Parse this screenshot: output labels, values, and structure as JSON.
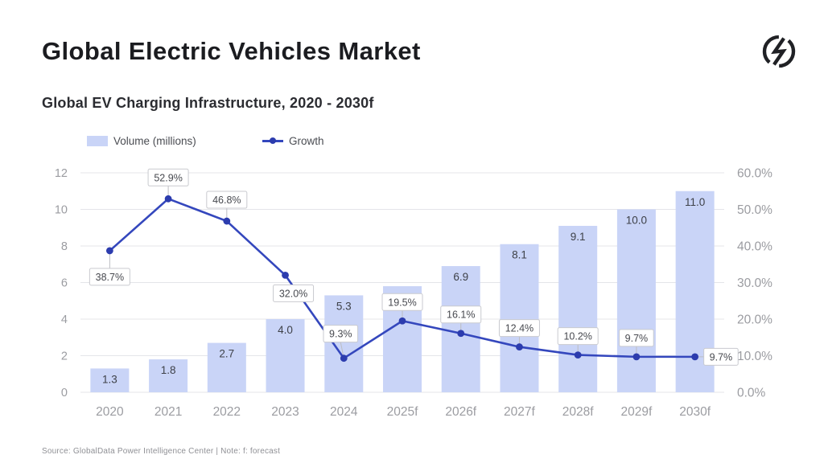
{
  "header": {
    "title": "Global Electric Vehicles Market",
    "subtitle": "Global EV Charging Infrastructure, 2020 - 2030f"
  },
  "legend": {
    "volume_label": "Volume (millions)",
    "growth_label": "Growth",
    "volume_color": "#c9d4f7",
    "growth_color": "#3447bd"
  },
  "footer": {
    "source": "Source: GlobalData Power Intelligence Center | Note: f: forecast"
  },
  "colors": {
    "bar_fill": "#c9d4f7",
    "line": "#3447bd",
    "dot": "#2c3cae",
    "grid": "#e4e5e9",
    "axis_text": "#9b9ca1",
    "bar_label_text": "#3e4148",
    "annotation_text": "#47494f",
    "annotation_border": "#c9cacf",
    "leader_line": "#bcbdc2"
  },
  "chart_data": {
    "type": "bar",
    "subtype": "combo bar+line, dual axis",
    "title": "Global EV Charging Infrastructure, 2020 - 2030f",
    "categories": [
      "2020",
      "2021",
      "2022",
      "2023",
      "2024",
      "2025f",
      "2026f",
      "2027f",
      "2028f",
      "2029f",
      "2030f"
    ],
    "series": [
      {
        "name": "Volume (millions)",
        "type": "bar",
        "axis": "left",
        "values": [
          1.3,
          1.8,
          2.7,
          4.0,
          5.3,
          5.8,
          6.9,
          8.1,
          9.1,
          10.0,
          11.0
        ],
        "labels": [
          "1.3",
          "1.8",
          "2.7",
          "4.0",
          "5.3",
          null,
          "6.9",
          "8.1",
          "9.1",
          "10.0",
          "11.0"
        ]
      },
      {
        "name": "Growth",
        "type": "line",
        "axis": "right",
        "values": [
          38.7,
          52.9,
          46.8,
          32.0,
          9.3,
          19.5,
          16.1,
          12.4,
          10.2,
          9.7,
          9.7
        ],
        "labels": [
          "38.7%",
          "52.9%",
          "46.8%",
          "32.0%",
          "9.3%",
          "19.5%",
          "16.1%",
          "12.4%",
          "10.2%",
          "9.7%",
          "9.7%"
        ]
      }
    ],
    "left_axis": {
      "ticks": [
        0,
        2,
        4,
        6,
        8,
        10,
        12
      ],
      "range": [
        0,
        12
      ]
    },
    "right_axis": {
      "ticks": [
        "0.0%",
        "10.0%",
        "20.0%",
        "30.0%",
        "40.0%",
        "50.0%",
        "60.0%"
      ],
      "tick_values": [
        0,
        10,
        20,
        30,
        40,
        50,
        60
      ],
      "range": [
        0,
        60
      ]
    },
    "grid": "horizontal",
    "legend_position": "top-left"
  }
}
